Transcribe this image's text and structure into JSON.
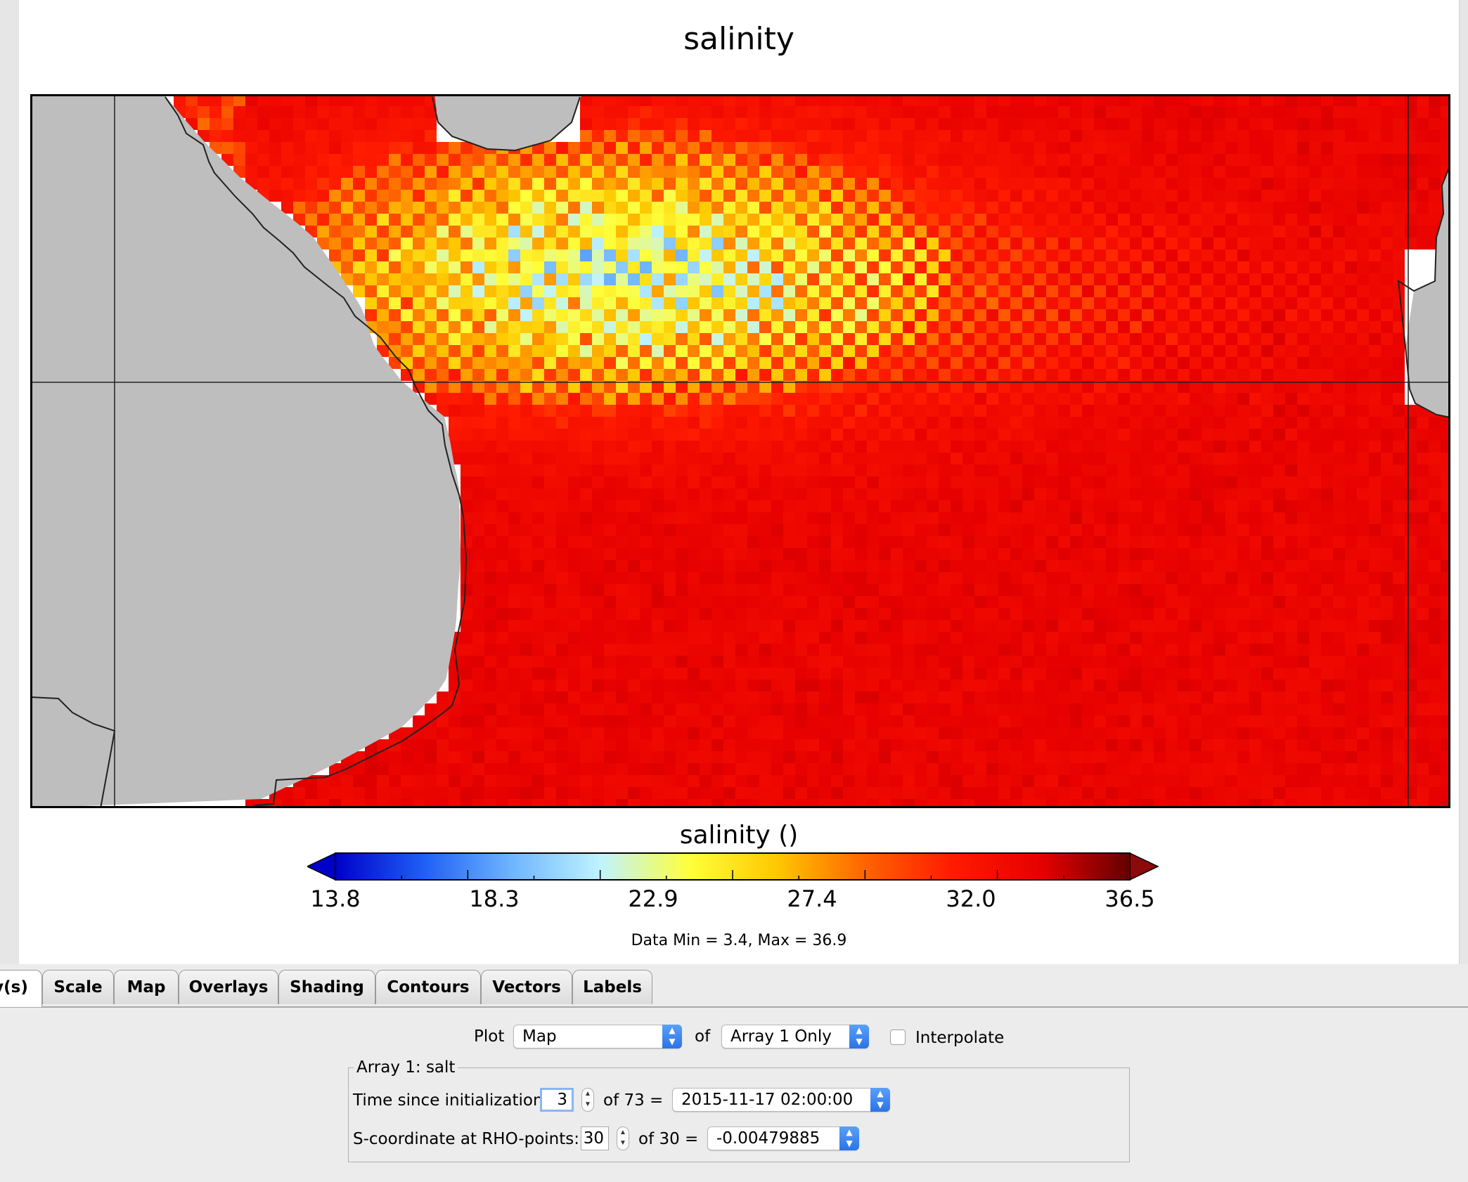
{
  "plot": {
    "title": "salinity",
    "colorbar_label": "salinity ()",
    "colorbar_ticks": [
      "13.8",
      "18.3",
      "22.9",
      "27.4",
      "32.0",
      "36.5"
    ],
    "data_range_text": "Data Min = 3.4, Max = 36.9",
    "colormap": [
      "#0000c8",
      "#1e5ff5",
      "#6fb5ff",
      "#bff3ff",
      "#ffff3c",
      "#ffc800",
      "#ff6400",
      "#ff1a00",
      "#e60000",
      "#640000"
    ],
    "land_color": "#bebebe"
  },
  "chart_data": {
    "type": "heatmap",
    "title": "salinity",
    "colorbar_label": "salinity ()",
    "value_range": [
      13.8,
      36.5
    ],
    "colorbar_ticks": [
      13.8,
      18.3,
      22.9,
      27.4,
      32.0,
      36.5
    ],
    "data_min": 3.4,
    "data_max": 36.9
  },
  "tabs": [
    {
      "label": "y(s)",
      "active": true
    },
    {
      "label": "Scale"
    },
    {
      "label": "Map"
    },
    {
      "label": "Overlays"
    },
    {
      "label": "Shading"
    },
    {
      "label": "Contours"
    },
    {
      "label": "Vectors"
    },
    {
      "label": "Labels"
    }
  ],
  "controls": {
    "plot_label": "Plot",
    "plot_type": "Map",
    "of_label": "of",
    "array_mode": "Array 1 Only",
    "interpolate_label": "Interpolate",
    "interpolate_checked": false,
    "group_title": "Array 1: salt",
    "time_label": "Time since initialization:",
    "time_value": "3",
    "time_of": "of 73 =",
    "time_select": "2015-11-17 02:00:00",
    "s_label": "S-coordinate at RHO-points:",
    "s_value": "30",
    "s_of": "of 30 =",
    "s_select": "-0.00479885"
  }
}
